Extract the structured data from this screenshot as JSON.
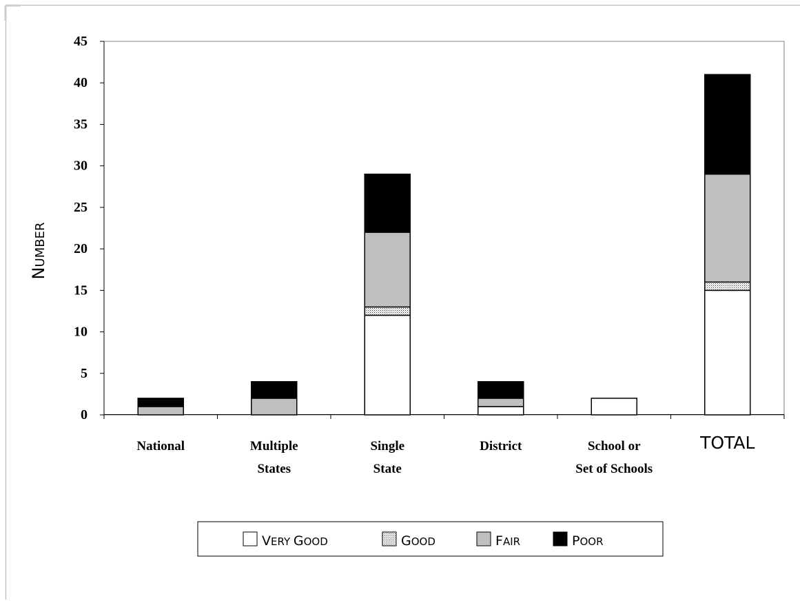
{
  "chart_data": {
    "type": "bar",
    "stacked": true,
    "title": "",
    "xlabel": "",
    "ylabel": "Number",
    "ylim": [
      0,
      45
    ],
    "yticks": [
      "0",
      "5",
      "10",
      "15",
      "20",
      "25",
      "30",
      "35",
      "40",
      "45"
    ],
    "grid": false,
    "legend_position": "bottom",
    "categories": [
      [
        "National"
      ],
      [
        "Multiple",
        "States"
      ],
      [
        "Single",
        "State"
      ],
      [
        "District"
      ],
      [
        "School or",
        "Set of Schools"
      ],
      [
        "TOTAL"
      ]
    ],
    "series": [
      {
        "name": "Very Good",
        "values": [
          0,
          0,
          12,
          1,
          2,
          15
        ],
        "color": "#ffffff",
        "pattern": "none"
      },
      {
        "name": "Good",
        "values": [
          0,
          0,
          1,
          0,
          0,
          1
        ],
        "color": "#ffffff",
        "pattern": "dots"
      },
      {
        "name": "Fair",
        "values": [
          1,
          2,
          9,
          1,
          0,
          13
        ],
        "color": "#bfbfbf",
        "pattern": "none"
      },
      {
        "name": "Poor",
        "values": [
          1,
          2,
          7,
          2,
          0,
          12
        ],
        "color": "#000000",
        "pattern": "none"
      }
    ]
  }
}
